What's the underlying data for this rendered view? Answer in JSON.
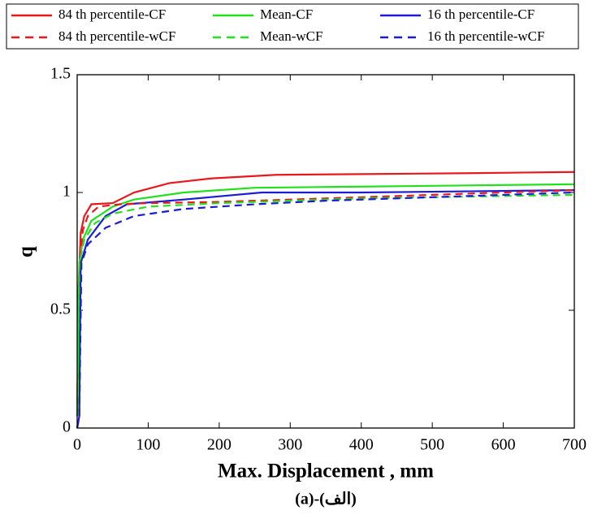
{
  "chart_data": {
    "type": "line",
    "xlabel": "Max. Displacement , mm",
    "ylabel": "q",
    "caption": "(a)-(الف)",
    "xlim": [
      0,
      700
    ],
    "ylim": [
      0,
      1.5
    ],
    "xticks": [
      0,
      100,
      200,
      300,
      400,
      500,
      600,
      700
    ],
    "yticks": [
      0,
      0.5,
      1,
      1.5
    ],
    "grid": false,
    "legend": "top",
    "series": [
      {
        "name": "84 th percentile-CF",
        "color": "#e8191c",
        "linestyle": "solid",
        "x": [
          0,
          2,
          5,
          10,
          20,
          50,
          80,
          130,
          190,
          280,
          400,
          550,
          700
        ],
        "values": [
          0.05,
          0.6,
          0.83,
          0.9,
          0.95,
          0.955,
          1.0,
          1.04,
          1.06,
          1.075,
          1.078,
          1.082,
          1.087
        ]
      },
      {
        "name": "Mean-CF",
        "color": "#22e01c",
        "linestyle": "solid",
        "x": [
          0,
          3,
          8,
          20,
          50,
          80,
          150,
          250,
          400,
          550,
          700
        ],
        "values": [
          0.05,
          0.7,
          0.8,
          0.88,
          0.94,
          0.97,
          1.0,
          1.02,
          1.025,
          1.03,
          1.035
        ]
      },
      {
        "name": "16 th percentile-CF",
        "color": "#1c1cd6",
        "linestyle": "solid",
        "x": [
          0,
          3,
          5,
          15,
          40,
          70,
          150,
          260,
          400,
          550,
          700
        ],
        "values": [
          0,
          0.05,
          0.7,
          0.8,
          0.9,
          0.95,
          0.97,
          1.0,
          1.0,
          1.005,
          1.01
        ]
      },
      {
        "name": "84 th percentile-wCF",
        "color": "#e8191c",
        "linestyle": "dashed",
        "x": [
          0,
          3,
          8,
          15,
          30,
          60,
          100,
          200,
          300,
          400,
          500,
          600,
          700
        ],
        "values": [
          0.05,
          0.7,
          0.84,
          0.9,
          0.94,
          0.95,
          0.955,
          0.96,
          0.97,
          0.98,
          0.99,
          1.0,
          1.01
        ]
      },
      {
        "name": "Mean-wCF",
        "color": "#22e01c",
        "linestyle": "dashed",
        "x": [
          0,
          3,
          10,
          25,
          50,
          100,
          200,
          300,
          400,
          500,
          600,
          700
        ],
        "values": [
          0.05,
          0.7,
          0.8,
          0.87,
          0.91,
          0.94,
          0.955,
          0.965,
          0.975,
          0.98,
          0.985,
          0.99
        ]
      },
      {
        "name": "16 th percentile-wCF",
        "color": "#1c1cd6",
        "linestyle": "dashed",
        "x": [
          0,
          3,
          6,
          15,
          40,
          80,
          150,
          250,
          350,
          450,
          550,
          700
        ],
        "values": [
          0,
          0.05,
          0.7,
          0.78,
          0.85,
          0.9,
          0.93,
          0.95,
          0.965,
          0.975,
          0.985,
          1.0
        ]
      }
    ]
  }
}
